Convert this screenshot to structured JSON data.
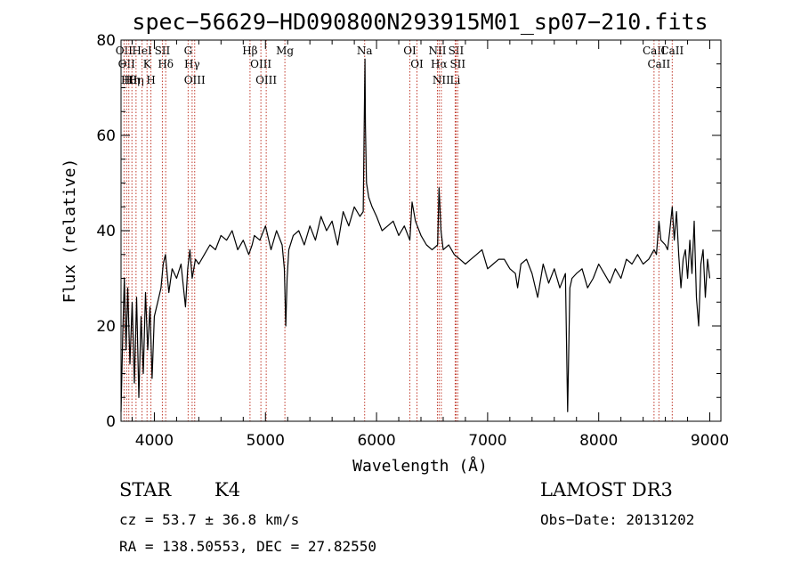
{
  "chart_data": {
    "type": "line",
    "title": "spec−56629−HD090800N293915M01_sp07−210.fits",
    "xlabel": "Wavelength (Å)",
    "ylabel": "Flux (relative)",
    "xlim": [
      3700,
      9100
    ],
    "ylim": [
      0,
      80
    ],
    "x_ticks": [
      4000,
      5000,
      6000,
      7000,
      8000,
      9000
    ],
    "y_ticks": [
      0,
      20,
      40,
      60,
      80
    ],
    "grid": false,
    "series": [
      {
        "x": [
          3700,
          3715,
          3730,
          3745,
          3760,
          3780,
          3800,
          3820,
          3840,
          3860,
          3880,
          3900,
          3920,
          3940,
          3960,
          3980,
          4000,
          4030,
          4060,
          4080,
          4100,
          4130,
          4160,
          4200,
          4240,
          4280,
          4300,
          4320,
          4340,
          4370,
          4400,
          4450,
          4500,
          4550,
          4600,
          4650,
          4700,
          4750,
          4800,
          4850,
          4880,
          4900,
          4950,
          5000,
          5050,
          5100,
          5150,
          5170,
          5183,
          5195,
          5210,
          5250,
          5300,
          5350,
          5400,
          5450,
          5500,
          5550,
          5600,
          5650,
          5700,
          5750,
          5800,
          5850,
          5880,
          5893,
          5896,
          5900,
          5910,
          5930,
          5960,
          6000,
          6050,
          6100,
          6150,
          6200,
          6250,
          6300,
          6320,
          6350,
          6400,
          6450,
          6500,
          6550,
          6563,
          6580,
          6600,
          6650,
          6700,
          6750,
          6800,
          6850,
          6900,
          6950,
          7000,
          7050,
          7100,
          7150,
          7200,
          7250,
          7270,
          7300,
          7350,
          7400,
          7450,
          7500,
          7550,
          7600,
          7650,
          7700,
          7720,
          7740,
          7760,
          7800,
          7850,
          7900,
          7950,
          8000,
          8050,
          8100,
          8150,
          8200,
          8250,
          8300,
          8350,
          8400,
          8450,
          8498,
          8520,
          8542,
          8560,
          8600,
          8620,
          8640,
          8662,
          8680,
          8700,
          8720,
          8740,
          8760,
          8780,
          8800,
          8820,
          8840,
          8860,
          8880,
          8900,
          8920,
          8940,
          8960,
          8980,
          9000
        ],
        "y": [
          2,
          18,
          30,
          15,
          28,
          12,
          25,
          8,
          26,
          5,
          22,
          10,
          27,
          15,
          24,
          9,
          22,
          25,
          28,
          33,
          35,
          27,
          32,
          30,
          33,
          24,
          32,
          36,
          30,
          34,
          33,
          35,
          37,
          36,
          39,
          38,
          40,
          36,
          38,
          35,
          37,
          39,
          38,
          41,
          36,
          40,
          37,
          32,
          20,
          30,
          36,
          39,
          40,
          37,
          41,
          38,
          43,
          40,
          42,
          37,
          44,
          41,
          45,
          43,
          44,
          70,
          76,
          62,
          50,
          47,
          45,
          43,
          40,
          41,
          42,
          39,
          41,
          38,
          46,
          42,
          39,
          37,
          36,
          37,
          49,
          40,
          36,
          37,
          35,
          34,
          33,
          34,
          35,
          36,
          32,
          33,
          34,
          34,
          32,
          31,
          28,
          33,
          34,
          31,
          26,
          33,
          29,
          32,
          28,
          31,
          2,
          28,
          30,
          31,
          32,
          28,
          30,
          33,
          31,
          29,
          32,
          30,
          34,
          33,
          35,
          33,
          34,
          36,
          35,
          42,
          38,
          37,
          36,
          40,
          45,
          38,
          44,
          35,
          28,
          34,
          36,
          30,
          38,
          31,
          42,
          26,
          20,
          33,
          36,
          26,
          34,
          30
        ]
      }
    ],
    "line_markers": [
      {
        "x": 3727,
        "label": "OII"
      },
      {
        "x": 3750,
        "label": "OII"
      },
      {
        "x": 3770,
        "label": "Hθ"
      },
      {
        "x": 3798,
        "label": "Hη"
      },
      {
        "x": 3835,
        "label": "Hη"
      },
      {
        "x": 3889,
        "label": "HeI"
      },
      {
        "x": 3934,
        "label": "K"
      },
      {
        "x": 3969,
        "label": "H"
      },
      {
        "x": 4072,
        "label": "SII"
      },
      {
        "x": 4102,
        "label": "Hδ"
      },
      {
        "x": 4304,
        "label": "G"
      },
      {
        "x": 4340,
        "label": "Hγ"
      },
      {
        "x": 4363,
        "label": "OIII"
      },
      {
        "x": 4861,
        "label": "Hβ"
      },
      {
        "x": 4959,
        "label": "OIII"
      },
      {
        "x": 5007,
        "label": "OIII"
      },
      {
        "x": 5175,
        "label": "Mg"
      },
      {
        "x": 5893,
        "label": "Na"
      },
      {
        "x": 6300,
        "label": "OI"
      },
      {
        "x": 6364,
        "label": "OI"
      },
      {
        "x": 6548,
        "label": "NII"
      },
      {
        "x": 6563,
        "label": "Hα"
      },
      {
        "x": 6583,
        "label": "NII"
      },
      {
        "x": 6708,
        "label": "Li"
      },
      {
        "x": 6716,
        "label": "SII"
      },
      {
        "x": 6731,
        "label": "SII"
      },
      {
        "x": 8498,
        "label": "CaII"
      },
      {
        "x": 8542,
        "label": "CaII"
      },
      {
        "x": 8662,
        "label": "CaII"
      }
    ]
  },
  "info": {
    "object_type": "STAR",
    "subclass": "K4",
    "survey": "LAMOST DR3",
    "cz": "cz = 53.7 ± 36.8 km/s",
    "obs_date": "Obs−Date: 20131202",
    "coords": "RA = 138.50553, DEC =  27.82550"
  },
  "colors": {
    "spectrum": "#000000",
    "marker_line": "#c0392b",
    "axes": "#000000"
  }
}
